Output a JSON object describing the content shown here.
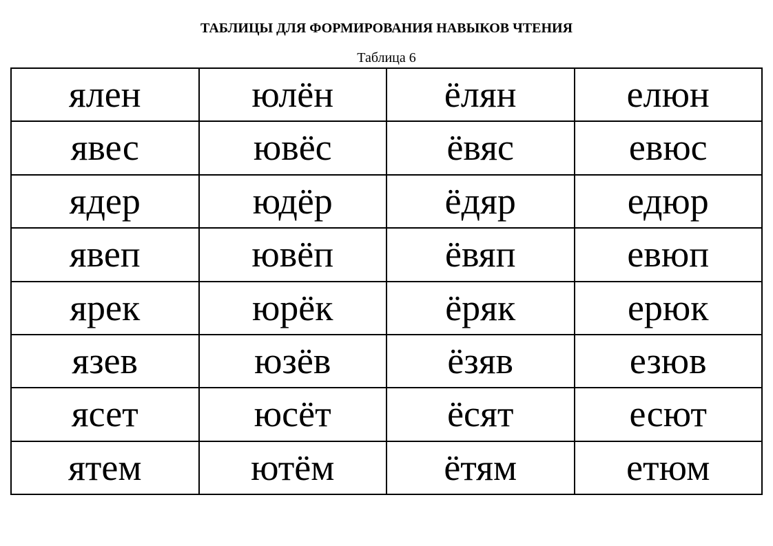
{
  "title": "ТАБЛИЦЫ ДЛЯ ФОРМИРОВАНИЯ НАВЫКОВ ЧТЕНИЯ",
  "table_number": "Таблица 6",
  "table": {
    "columns": 4,
    "rows": [
      [
        "ялен",
        "юлён",
        "ёлян",
        "елюн"
      ],
      [
        "явес",
        "ювёс",
        "ёвяс",
        "евюс"
      ],
      [
        "ядер",
        "юдёр",
        "ёдяр",
        "едюр"
      ],
      [
        "явеп",
        "ювёп",
        "ёвяп",
        "евюп"
      ],
      [
        "ярек",
        "юрёк",
        "ёряк",
        "ерюк"
      ],
      [
        "язев",
        "юзёв",
        "ёзяв",
        "езюв"
      ],
      [
        "ясет",
        "юсёт",
        "ёсят",
        "есют"
      ],
      [
        "ятем",
        "ютём",
        "ётям",
        "етюм"
      ]
    ],
    "cell_fontsize": 54,
    "title_fontsize": 20,
    "number_fontsize": 20,
    "border_color": "#000000",
    "border_width": 2,
    "text_color": "#000000",
    "background_color": "#ffffff",
    "font_family": "Times New Roman"
  }
}
